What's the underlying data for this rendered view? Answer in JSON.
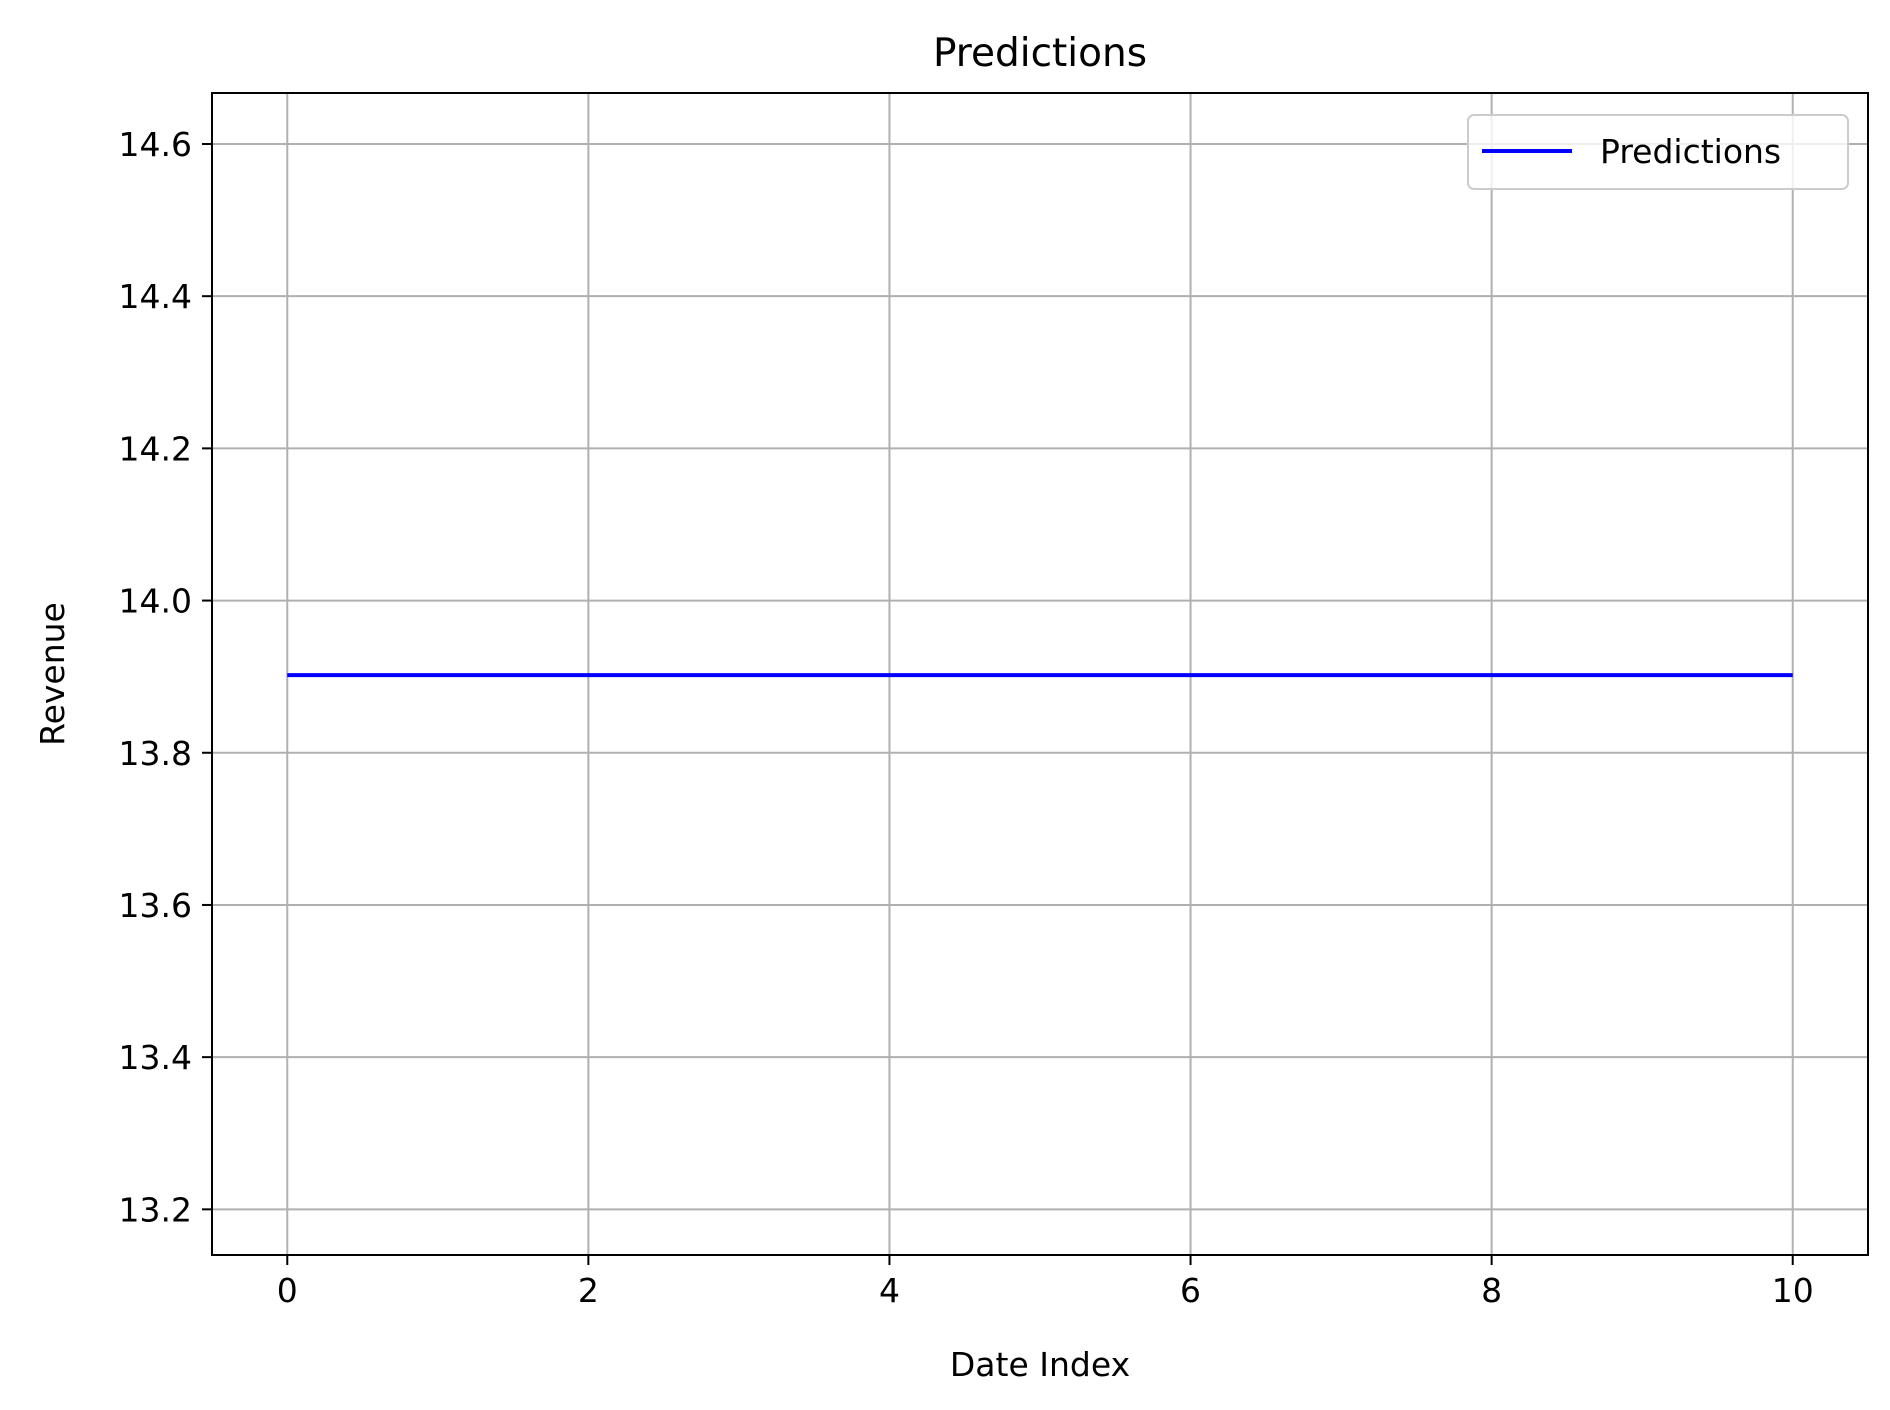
{
  "chart_data": {
    "type": "line",
    "title": "Predictions",
    "xlabel": "Date Index",
    "ylabel": "Revenue",
    "x": [
      0,
      1,
      2,
      3,
      4,
      5,
      6,
      7,
      8,
      9,
      10
    ],
    "series": [
      {
        "name": "Predictions",
        "color": "#0000ff",
        "values": [
          13.902,
          13.902,
          13.902,
          13.902,
          13.902,
          13.902,
          13.902,
          13.902,
          13.902,
          13.902,
          13.902
        ]
      }
    ],
    "xlim": [
      -0.5,
      10.5
    ],
    "ylim": [
      13.14,
      14.667
    ],
    "xticks": [
      0,
      2,
      4,
      6,
      8,
      10
    ],
    "xtick_labels": [
      "0",
      "2",
      "4",
      "6",
      "8",
      "10"
    ],
    "yticks": [
      13.2,
      13.4,
      13.6,
      13.8,
      14.0,
      14.2,
      14.4,
      14.6
    ],
    "ytick_labels": [
      "13.2",
      "13.4",
      "13.6",
      "13.8",
      "14.0",
      "14.2",
      "14.4",
      "14.6"
    ],
    "grid": true,
    "legend_position": "top-right",
    "colors": {
      "grid": "#b0b0b0",
      "axes": "#000000",
      "legend_border": "#cccccc"
    }
  }
}
